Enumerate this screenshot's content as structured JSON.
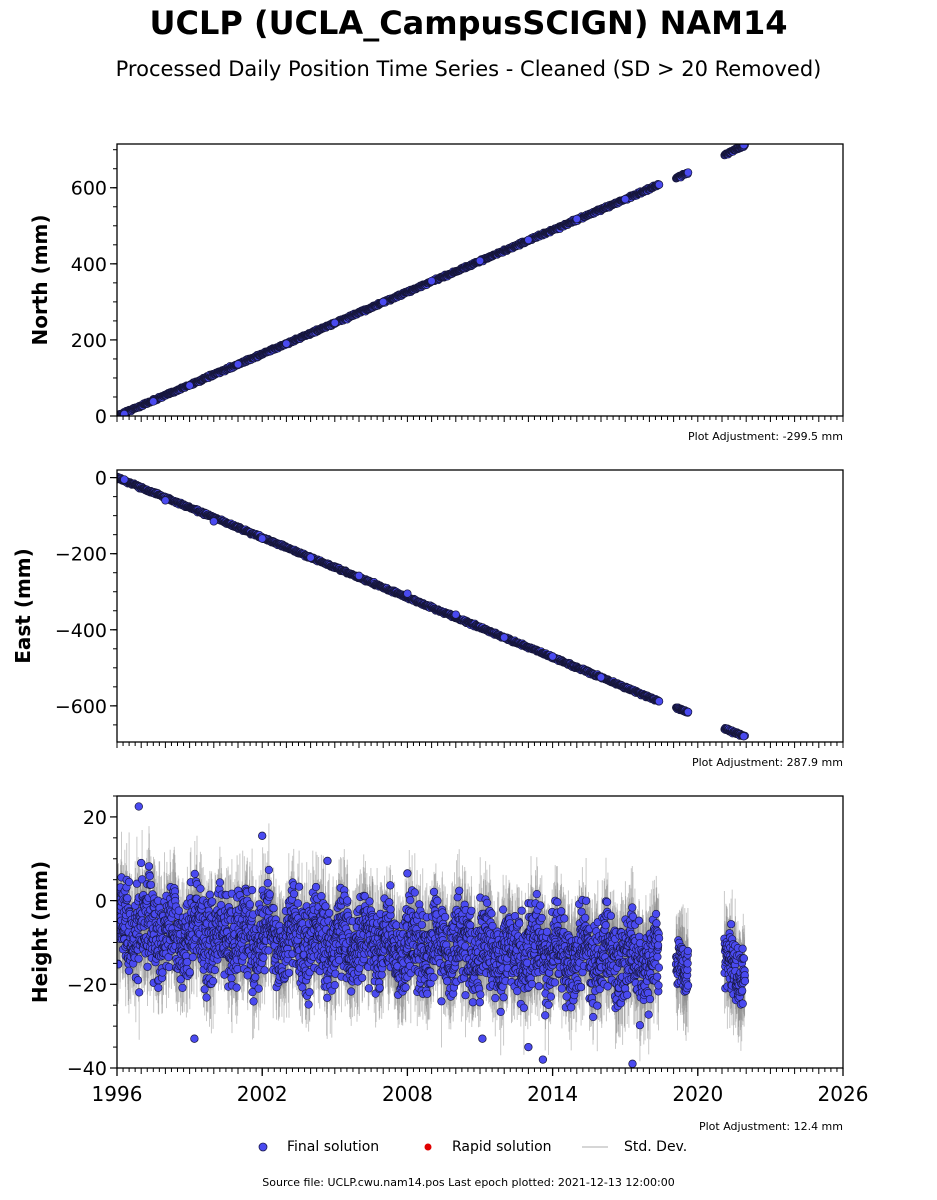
{
  "title": "UCLP (UCLA_CampusSCIGN) NAM14",
  "subtitle": "Processed Daily Position Time Series - Cleaned (SD > 20 Removed)",
  "source_note": "Source file: UCLP.cwu.nam14.pos  Last epoch plotted: 2021-12-13 12:00:00",
  "legend": [
    {
      "label": "Final solution",
      "color": "#4a4af0",
      "marker": "circle"
    },
    {
      "label": "Rapid solution",
      "color": "#e00000",
      "marker": "circle"
    },
    {
      "label": "Std. Dev.",
      "color": "#c8c8c8",
      "marker": "line"
    }
  ],
  "chart_data": [
    {
      "type": "scatter",
      "ylabel": "North (mm)",
      "adjustment": "Plot Adjustment: -299.5 mm",
      "xlim": [
        1996,
        2026
      ],
      "ylim": [
        0,
        715
      ],
      "yticks": [
        0,
        200,
        400,
        600
      ],
      "segments": [
        {
          "x0": 1996.0,
          "x1": 2018.4,
          "y0": 0,
          "y1": 608
        },
        {
          "x0": 2019.1,
          "x1": 2019.6,
          "y0": 626,
          "y1": 640
        },
        {
          "x0": 2021.1,
          "x1": 2021.95,
          "y0": 686,
          "y1": 712
        }
      ],
      "points": [
        {
          "x": 1996.3,
          "y": 5
        },
        {
          "x": 1997.5,
          "y": 38
        },
        {
          "x": 1999.0,
          "y": 80
        },
        {
          "x": 2001.0,
          "y": 136
        },
        {
          "x": 2003.0,
          "y": 190
        },
        {
          "x": 2005.0,
          "y": 245
        },
        {
          "x": 2007.0,
          "y": 300
        },
        {
          "x": 2009.0,
          "y": 355
        },
        {
          "x": 2011.0,
          "y": 408
        },
        {
          "x": 2013.0,
          "y": 463
        },
        {
          "x": 2015.0,
          "y": 518
        },
        {
          "x": 2017.0,
          "y": 570
        },
        {
          "x": 2018.4,
          "y": 608
        },
        {
          "x": 2019.6,
          "y": 640
        },
        {
          "x": 2021.9,
          "y": 712
        }
      ]
    },
    {
      "type": "scatter",
      "ylabel": "East (mm)",
      "adjustment": "Plot Adjustment: 287.9 mm",
      "xlim": [
        1996,
        2026
      ],
      "ylim": [
        -695,
        20
      ],
      "yticks": [
        0,
        -200,
        -400,
        -600
      ],
      "segments": [
        {
          "x0": 1996.0,
          "x1": 2018.4,
          "y0": 0,
          "y1": -588
        },
        {
          "x0": 2019.1,
          "x1": 2019.6,
          "y0": -605,
          "y1": -616
        },
        {
          "x0": 2021.1,
          "x1": 2021.95,
          "y0": -660,
          "y1": -680
        }
      ],
      "points": [
        {
          "x": 1996.3,
          "y": -5
        },
        {
          "x": 1998.0,
          "y": -60
        },
        {
          "x": 2000.0,
          "y": -115
        },
        {
          "x": 2002.0,
          "y": -160
        },
        {
          "x": 2004.0,
          "y": -210
        },
        {
          "x": 2006.0,
          "y": -258
        },
        {
          "x": 2008.0,
          "y": -305
        },
        {
          "x": 2010.0,
          "y": -360
        },
        {
          "x": 2012.0,
          "y": -420
        },
        {
          "x": 2014.0,
          "y": -470
        },
        {
          "x": 2016.0,
          "y": -525
        },
        {
          "x": 2018.4,
          "y": -588
        },
        {
          "x": 2019.6,
          "y": -616
        },
        {
          "x": 2021.9,
          "y": -680
        }
      ]
    },
    {
      "type": "scatter",
      "ylabel": "Height (mm)",
      "adjustment": "Plot Adjustment: 12.4 mm",
      "xlim": [
        1996,
        2026
      ],
      "ylim": [
        -40,
        25
      ],
      "yticks": [
        20,
        0,
        -20,
        -40
      ],
      "xticks": [
        1996,
        2002,
        2008,
        2014,
        2020,
        2026
      ],
      "segments": [
        {
          "x0": 1996.0,
          "x1": 2018.4,
          "mean_start": -7,
          "mean_end": -14,
          "spread": 8
        },
        {
          "x0": 2019.1,
          "x1": 2019.6,
          "mean_start": -17,
          "mean_end": -17,
          "spread": 5
        },
        {
          "x0": 2021.1,
          "x1": 2021.95,
          "mean_start": -16,
          "mean_end": -16,
          "spread": 6
        }
      ],
      "points": [
        {
          "x": 1996.9,
          "y": 22.5
        },
        {
          "x": 2002.0,
          "y": 15.5
        },
        {
          "x": 1997.0,
          "y": 9
        },
        {
          "x": 1999.2,
          "y": -33
        },
        {
          "x": 2011.1,
          "y": -33
        },
        {
          "x": 2013.0,
          "y": -35
        },
        {
          "x": 2013.6,
          "y": -38
        },
        {
          "x": 2017.3,
          "y": -39
        },
        {
          "x": 2008.0,
          "y": 6.5
        },
        {
          "x": 2004.7,
          "y": 9.5
        }
      ]
    }
  ]
}
